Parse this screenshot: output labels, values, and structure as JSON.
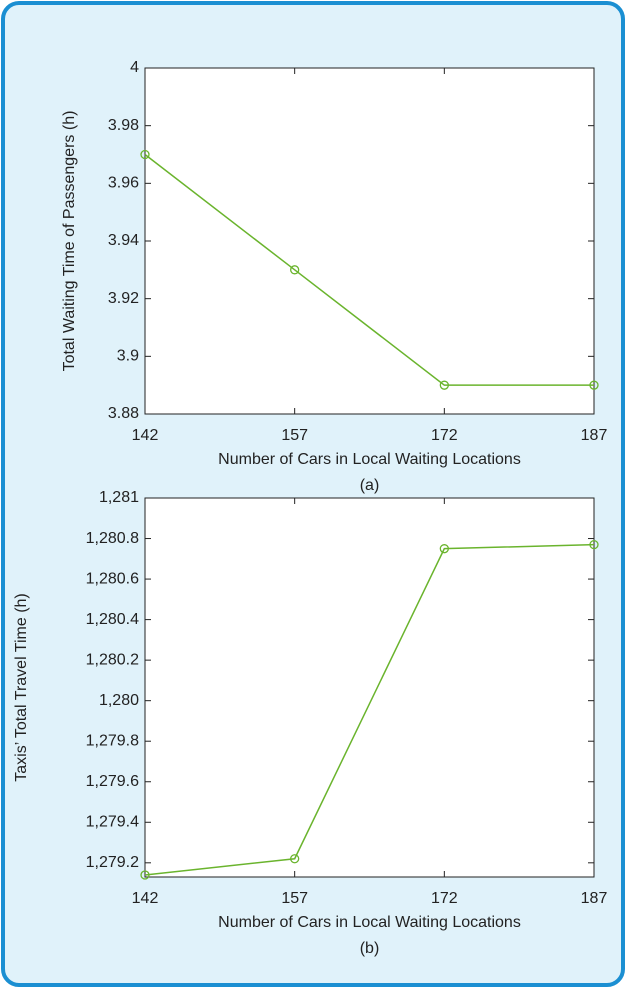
{
  "chart_data": [
    {
      "type": "line",
      "color": "#6ab42d",
      "x": [
        142,
        157,
        172,
        187
      ],
      "values": [
        3.97,
        3.93,
        3.89,
        3.89
      ],
      "xlim": [
        142,
        187
      ],
      "xticks": [
        142,
        157,
        172,
        187
      ],
      "ylim": [
        3.88,
        4
      ],
      "yticks": [
        3.88,
        3.9,
        3.92,
        3.94,
        3.96,
        3.98,
        4
      ],
      "xlabel": "Number of Cars in Local Waiting Locations",
      "ylabel": "Total Waiting Time of Passengers (h)",
      "caption": "(a)",
      "marker": "circle"
    },
    {
      "type": "line",
      "color": "#6ab42d",
      "x": [
        142,
        157,
        172,
        187
      ],
      "values": [
        1279.14,
        1279.22,
        1280.75,
        1280.77
      ],
      "xlim": [
        142,
        187
      ],
      "xticks": [
        142,
        157,
        172,
        187
      ],
      "ylim": [
        1279.13,
        1281
      ],
      "yticks": [
        {
          "value": 1279.2,
          "label": "1,279.2"
        },
        {
          "value": 1279.4,
          "label": "1,279.4"
        },
        {
          "value": 1279.6,
          "label": "1,279.6"
        },
        {
          "value": 1279.8,
          "label": "1,279.8"
        },
        {
          "value": 1280,
          "label": "1,280"
        },
        {
          "value": 1280.2,
          "label": "1,280.2"
        },
        {
          "value": 1280.4,
          "label": "1,280.4"
        },
        {
          "value": 1280.6,
          "label": "1,280.6"
        },
        {
          "value": 1280.8,
          "label": "1,280.8"
        },
        {
          "value": 1281,
          "label": "1,281"
        }
      ],
      "xlabel": "Number of Cars in Local Waiting Locations",
      "ylabel": "Taxis’ Total Travel Time (h)",
      "caption": "(b)",
      "marker": "circle"
    }
  ]
}
